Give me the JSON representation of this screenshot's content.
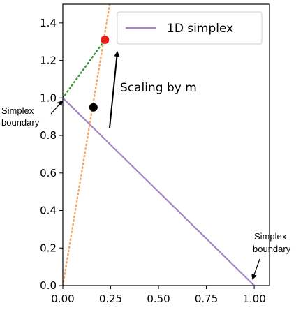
{
  "chart_data": {
    "type": "line",
    "xlim": [
      0.0,
      1.08
    ],
    "ylim": [
      0.0,
      1.5
    ],
    "xticks": [
      0.0,
      0.25,
      0.5,
      0.75,
      1.0
    ],
    "xtick_labels": [
      "0.00",
      "0.25",
      "0.50",
      "0.75",
      "1.00"
    ],
    "yticks": [
      0.0,
      0.2,
      0.4,
      0.6,
      0.8,
      1.0,
      1.2,
      1.4
    ],
    "ytick_labels": [
      "0.0",
      "0.2",
      "0.4",
      "0.6",
      "0.8",
      "1.0",
      "1.2",
      "1.4"
    ],
    "grid": false,
    "legend": {
      "placement": "top-right",
      "entries": [
        "1D simplex"
      ]
    },
    "series": [
      {
        "name": "1D simplex",
        "style": "solid",
        "color": "#a784c8",
        "x": [
          0.0,
          1.0
        ],
        "y": [
          1.0,
          0.0
        ]
      },
      {
        "style": "dotted",
        "color": "#f2a765",
        "x": [
          0.0,
          0.245
        ],
        "y": [
          0.0,
          1.5
        ]
      },
      {
        "style": "dotted",
        "color": "#3a9a3a",
        "x": [
          0.0,
          0.22
        ],
        "y": [
          1.0,
          1.31
        ]
      }
    ],
    "points": [
      {
        "x": 0.16,
        "y": 0.95,
        "color": "#000000"
      },
      {
        "x": 0.22,
        "y": 1.31,
        "color": "#e8201a"
      }
    ],
    "annotations": {
      "scaling": "Scaling by m",
      "boundary_left_line1": "Simplex",
      "boundary_left_line2": "boundary",
      "boundary_right_line1": "Simplex",
      "boundary_right_line2": "boundary"
    }
  }
}
